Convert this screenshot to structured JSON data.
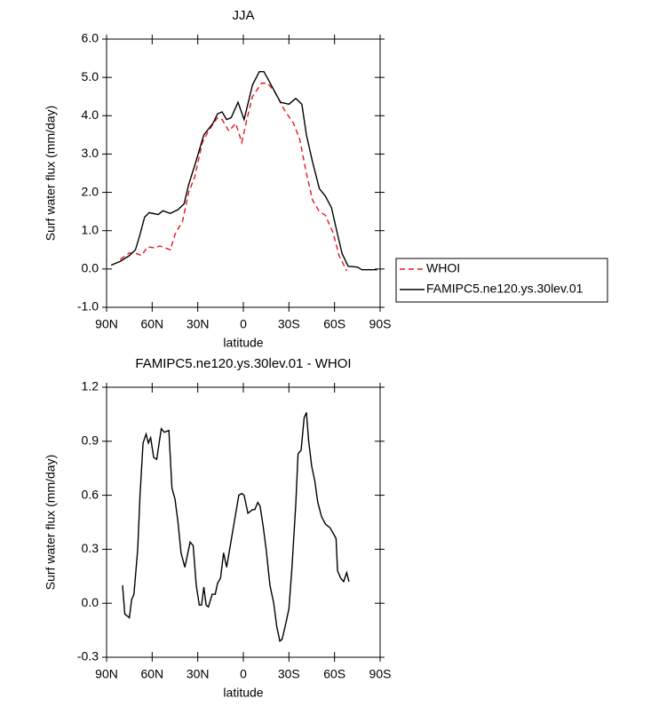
{
  "chart_data": [
    {
      "type": "line",
      "title": "JJA",
      "xlabel": "latitude",
      "ylabel": "Surf water flux (mm/day)",
      "xlim": [
        90,
        -90
      ],
      "xticks": [
        {
          "value": 90,
          "label": "90N"
        },
        {
          "value": 60,
          "label": "60N"
        },
        {
          "value": 30,
          "label": "30N"
        },
        0,
        {
          "value": -30,
          "label": "30S"
        },
        {
          "value": -60,
          "label": "60S"
        },
        {
          "value": -90,
          "label": "90S"
        }
      ],
      "ylim": [
        -1,
        6
      ],
      "yticks": [
        {
          "value": -1,
          "label": "-1.0"
        },
        {
          "value": 0,
          "label": "0.0"
        },
        {
          "value": 1,
          "label": "1.0"
        },
        {
          "value": 2,
          "label": "2.0"
        },
        {
          "value": 3,
          "label": "3.0"
        },
        {
          "value": 4,
          "label": "4.0"
        },
        {
          "value": 5,
          "label": "5.0"
        },
        {
          "value": 6,
          "label": "6.0"
        }
      ],
      "legend": "outside-right",
      "series": [
        {
          "name": "WHOI",
          "color": "#e8141b",
          "dash": "dashed",
          "x": [
            81,
            75,
            70,
            67,
            63,
            58,
            55,
            48,
            45,
            40,
            36,
            32,
            27,
            23,
            17,
            14,
            9.5,
            5,
            1,
            -2,
            -6,
            -12,
            -16,
            -21,
            -27,
            -33,
            -37,
            -41.5,
            -45.5,
            -50,
            -54,
            -59,
            -63,
            -68
          ],
          "values": [
            0.25,
            0.42,
            0.4,
            0.35,
            0.58,
            0.55,
            0.6,
            0.5,
            0.9,
            1.25,
            2.0,
            2.4,
            3.3,
            3.6,
            3.95,
            3.9,
            3.6,
            3.8,
            3.3,
            3.85,
            4.5,
            4.85,
            4.85,
            4.6,
            4.15,
            3.8,
            3.4,
            2.5,
            1.8,
            1.5,
            1.4,
            0.95,
            0.35,
            -0.05
          ]
        },
        {
          "name": "FAMIPC5.ne120.ys.30lev.01",
          "color": "#000000",
          "dash": "solid",
          "x": [
            87,
            81,
            75,
            71,
            68,
            65,
            62,
            56,
            53,
            48,
            43,
            39,
            36,
            32,
            26,
            20,
            17,
            14,
            11,
            8,
            3.5,
            -0.5,
            -6,
            -10.5,
            -13.5,
            -17,
            -21,
            -24.5,
            -30,
            -34.5,
            -38.5,
            -41.5,
            -45.5,
            -50,
            -54,
            -58,
            -62,
            -65,
            -69,
            -75,
            -78,
            -88
          ],
          "values": [
            0.1,
            0.2,
            0.35,
            0.5,
            0.9,
            1.35,
            1.47,
            1.42,
            1.52,
            1.45,
            1.55,
            1.7,
            2.2,
            2.7,
            3.5,
            3.8,
            4.05,
            4.1,
            3.9,
            3.95,
            4.35,
            3.9,
            4.8,
            5.15,
            5.15,
            4.9,
            4.6,
            4.35,
            4.3,
            4.45,
            4.3,
            3.5,
            2.8,
            2.1,
            1.9,
            1.6,
            0.9,
            0.4,
            0.07,
            0.05,
            -0.02,
            -0.02
          ]
        }
      ]
    },
    {
      "type": "line",
      "title": "FAMIPC5.ne120.ys.30lev.01 - WHOI",
      "xlabel": "latitude",
      "ylabel": "Surf water flux (mm/day)",
      "xlim": [
        90,
        -90
      ],
      "xticks": [
        {
          "value": 90,
          "label": "90N"
        },
        {
          "value": 60,
          "label": "60N"
        },
        {
          "value": 30,
          "label": "30N"
        },
        0,
        {
          "value": -30,
          "label": "30S"
        },
        {
          "value": -60,
          "label": "60S"
        },
        {
          "value": -90,
          "label": "90S"
        }
      ],
      "ylim": [
        -0.3,
        1.2
      ],
      "yticks": [
        -0.3,
        {
          "value": 0,
          "label": "0.0"
        },
        0.3,
        0.6,
        0.9,
        1.2
      ],
      "color": "#000000",
      "x": [
        79.5,
        78,
        75,
        73.5,
        72,
        69.5,
        68,
        66,
        64,
        62.5,
        61,
        59,
        57,
        54,
        52,
        49,
        47,
        45,
        43,
        41,
        38.5,
        35,
        33,
        31,
        29,
        27.5,
        26,
        24.5,
        23,
        20.5,
        18.5,
        17,
        15,
        13,
        11,
        8,
        5,
        3,
        1,
        -0.5,
        -3,
        -6,
        -7.5,
        -9.5,
        -11,
        -13,
        -15,
        -17.5,
        -20,
        -22,
        -24,
        -25.5,
        -28,
        -30,
        -32,
        -34.5,
        -36,
        -38,
        -40,
        -41.5,
        -43,
        -45,
        -47,
        -49,
        -51.5,
        -54,
        -57,
        -61,
        -62,
        -64,
        -66,
        -68,
        -69.5
      ],
      "values": [
        0.1,
        -0.06,
        -0.08,
        0.02,
        0.05,
        0.3,
        0.6,
        0.89,
        0.94,
        0.89,
        0.92,
        0.81,
        0.8,
        0.97,
        0.95,
        0.96,
        0.64,
        0.58,
        0.45,
        0.28,
        0.2,
        0.34,
        0.32,
        0.1,
        -0.01,
        -0.01,
        0.09,
        -0.01,
        -0.02,
        0.05,
        0.05,
        0.11,
        0.14,
        0.28,
        0.2,
        0.35,
        0.5,
        0.6,
        0.61,
        0.6,
        0.5,
        0.52,
        0.52,
        0.56,
        0.54,
        0.43,
        0.3,
        0.1,
        0.0,
        -0.13,
        -0.21,
        -0.2,
        -0.11,
        -0.03,
        0.2,
        0.55,
        0.83,
        0.85,
        1.03,
        1.06,
        0.9,
        0.76,
        0.68,
        0.56,
        0.48,
        0.44,
        0.42,
        0.36,
        0.18,
        0.14,
        0.12,
        0.17,
        0.12
      ]
    }
  ]
}
